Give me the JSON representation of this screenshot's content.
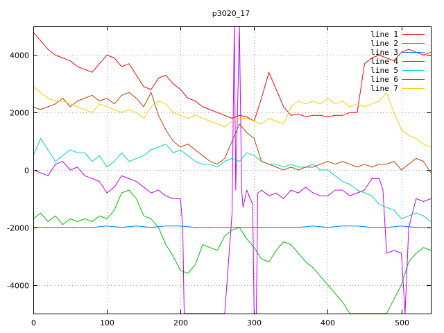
{
  "chart_data": {
    "type": "line",
    "title": "p3020_17",
    "xlabel": "",
    "ylabel": "",
    "xlim": [
      0,
      540
    ],
    "ylim": [
      -5000,
      5000
    ],
    "xticks": [
      0,
      100,
      200,
      300,
      400,
      500
    ],
    "yticks": [
      -4000,
      -2000,
      0,
      2000,
      4000
    ],
    "grid": true,
    "legend_position": "top-right",
    "series": [
      {
        "name": "line 1",
        "color": "#ff0000",
        "x": [
          0,
          10,
          20,
          30,
          40,
          50,
          60,
          70,
          80,
          90,
          100,
          110,
          120,
          130,
          140,
          150,
          160,
          170,
          180,
          190,
          200,
          210,
          220,
          230,
          240,
          250,
          260,
          270,
          280,
          290,
          300,
          310,
          320,
          330,
          340,
          350,
          360,
          370,
          380,
          390,
          400,
          410,
          420,
          430,
          440,
          450,
          460,
          470,
          480,
          490,
          500,
          510,
          520,
          530,
          540
        ],
        "values": [
          4800,
          4500,
          4200,
          4000,
          3900,
          3800,
          3600,
          3500,
          3400,
          3700,
          4000,
          3900,
          3600,
          3700,
          3300,
          2900,
          2800,
          3200,
          3300,
          3000,
          2800,
          2500,
          2400,
          2200,
          2100,
          2000,
          1900,
          1800,
          1900,
          1850,
          1700,
          2500,
          3400,
          2800,
          2200,
          1900,
          1950,
          1850,
          1900,
          1900,
          1850,
          1900,
          1900,
          2000,
          2000,
          3700,
          3900,
          4000,
          3900,
          3800,
          4100,
          4200,
          4100,
          4000,
          4100
        ]
      },
      {
        "name": "line 2",
        "color": "#00c000",
        "x": [
          0,
          10,
          20,
          30,
          40,
          50,
          60,
          70,
          80,
          90,
          100,
          110,
          120,
          130,
          140,
          150,
          160,
          170,
          180,
          190,
          200,
          210,
          220,
          230,
          240,
          250,
          260,
          270,
          280,
          290,
          300,
          310,
          320,
          330,
          340,
          350,
          360,
          370,
          380,
          390,
          400,
          410,
          420,
          430,
          440,
          450,
          460,
          470,
          480,
          490,
          500,
          510,
          520,
          530,
          540
        ],
        "values": [
          -1700,
          -1500,
          -1800,
          -1600,
          -1900,
          -1700,
          -1800,
          -1700,
          -1800,
          -1600,
          -1700,
          -1400,
          -800,
          -700,
          -1000,
          -1600,
          -1700,
          -2000,
          -2600,
          -3000,
          -3500,
          -3600,
          -3300,
          -2600,
          -2700,
          -2800,
          -2300,
          -2100,
          -2000,
          -2400,
          -2700,
          -3100,
          -3200,
          -2800,
          -2500,
          -2600,
          -2900,
          -3200,
          -3400,
          -3700,
          -4000,
          -4300,
          -4600,
          -5000,
          -5000,
          -5000,
          -5000,
          -5000,
          -5000,
          -4500,
          -4000,
          -3200,
          -2900,
          -2700,
          -2800
        ]
      },
      {
        "name": "line 3",
        "color": "#0080ff",
        "x": [
          0,
          20,
          40,
          60,
          80,
          100,
          120,
          140,
          160,
          180,
          200,
          220,
          240,
          260,
          280,
          300,
          320,
          340,
          360,
          380,
          400,
          420,
          440,
          460,
          480,
          500,
          520,
          540
        ],
        "values": [
          -2000,
          -2000,
          -2000,
          -2000,
          -2000,
          -1950,
          -2000,
          -1950,
          -2000,
          -1950,
          -1950,
          -2000,
          -2000,
          -2000,
          -2000,
          -2000,
          -2000,
          -2000,
          -2000,
          -1950,
          -2000,
          -1950,
          -1950,
          -2000,
          -2000,
          -1950,
          -2000,
          -2000
        ]
      },
      {
        "name": "line 4",
        "color": "#c000ff",
        "x": [
          0,
          10,
          20,
          30,
          40,
          50,
          60,
          70,
          80,
          90,
          100,
          110,
          120,
          130,
          140,
          150,
          160,
          170,
          180,
          190,
          200,
          203,
          205,
          210,
          220,
          230,
          240,
          250,
          260,
          270,
          273,
          275,
          280,
          283,
          285,
          290,
          298,
          300,
          303,
          305,
          310,
          320,
          330,
          340,
          350,
          360,
          370,
          380,
          390,
          400,
          410,
          420,
          430,
          440,
          450,
          460,
          470,
          475,
          480,
          490,
          500,
          505,
          510,
          520,
          530,
          540
        ],
        "values": [
          0,
          -100,
          -200,
          200,
          300,
          0,
          100,
          -200,
          -300,
          -400,
          -800,
          -600,
          -200,
          -300,
          -400,
          -600,
          -800,
          -700,
          -900,
          -1000,
          -1000,
          -2000,
          -5000,
          -5000,
          -5000,
          -5000,
          -5000,
          -5000,
          -5000,
          -1500,
          5000,
          -700,
          5000,
          -700,
          -1300,
          -700,
          -1200,
          -5000,
          -5000,
          -800,
          -700,
          -900,
          -800,
          -1000,
          -700,
          -800,
          -600,
          -800,
          -900,
          -900,
          -700,
          -700,
          -900,
          -800,
          -700,
          -300,
          -300,
          -700,
          -2900,
          -2800,
          -2900,
          -5000,
          -2000,
          -1000,
          -1100,
          -1000
        ]
      },
      {
        "name": "line 5",
        "color": "#00d0d0",
        "x": [
          0,
          10,
          20,
          30,
          40,
          50,
          60,
          70,
          80,
          90,
          100,
          110,
          120,
          130,
          140,
          150,
          160,
          170,
          180,
          190,
          200,
          210,
          220,
          230,
          240,
          250,
          260,
          270,
          280,
          290,
          300,
          310,
          320,
          330,
          340,
          350,
          360,
          370,
          380,
          390,
          400,
          410,
          420,
          430,
          440,
          450,
          460,
          470,
          480,
          490,
          500,
          510,
          520,
          530,
          540
        ],
        "values": [
          500,
          1100,
          700,
          300,
          500,
          700,
          600,
          600,
          300,
          500,
          100,
          300,
          600,
          300,
          400,
          500,
          700,
          800,
          900,
          600,
          700,
          500,
          300,
          200,
          200,
          100,
          300,
          400,
          300,
          600,
          500,
          300,
          200,
          200,
          100,
          200,
          100,
          100,
          200,
          0,
          0,
          -200,
          -400,
          -500,
          -700,
          -800,
          -900,
          -1200,
          -1300,
          -1400,
          -1700,
          -1600,
          -1500,
          -1600,
          -1800
        ]
      },
      {
        "name": "line 6",
        "color": "#c04000",
        "x": [
          0,
          10,
          20,
          30,
          40,
          50,
          60,
          70,
          80,
          90,
          100,
          110,
          120,
          130,
          140,
          150,
          160,
          170,
          180,
          190,
          200,
          210,
          220,
          230,
          240,
          250,
          260,
          270,
          280,
          290,
          300,
          310,
          320,
          330,
          340,
          350,
          360,
          370,
          380,
          390,
          400,
          410,
          420,
          430,
          440,
          450,
          460,
          470,
          480,
          490,
          500,
          510,
          520,
          530,
          540
        ],
        "values": [
          2200,
          2100,
          2200,
          2300,
          2500,
          2200,
          2400,
          2500,
          2600,
          2400,
          2500,
          2300,
          2600,
          2700,
          2500,
          2200,
          2700,
          1900,
          1400,
          1000,
          800,
          900,
          700,
          500,
          300,
          200,
          400,
          1000,
          1600,
          1300,
          1100,
          300,
          200,
          100,
          0,
          100,
          0,
          100,
          100,
          200,
          300,
          200,
          300,
          200,
          100,
          200,
          100,
          200,
          200,
          300,
          0,
          200,
          400,
          300,
          -100
        ]
      },
      {
        "name": "line 7",
        "color": "#ffcc00",
        "x": [
          0,
          10,
          20,
          30,
          40,
          50,
          60,
          70,
          80,
          90,
          100,
          110,
          120,
          130,
          140,
          150,
          160,
          170,
          180,
          190,
          200,
          210,
          220,
          230,
          240,
          250,
          260,
          270,
          280,
          290,
          300,
          310,
          320,
          330,
          340,
          350,
          360,
          370,
          380,
          390,
          400,
          410,
          420,
          430,
          440,
          450,
          460,
          470,
          480,
          490,
          500,
          510,
          520,
          530,
          540
        ],
        "values": [
          2900,
          2700,
          2500,
          2400,
          2400,
          2300,
          2200,
          2100,
          2000,
          2300,
          2200,
          2100,
          2000,
          2100,
          2000,
          1800,
          2200,
          2400,
          2300,
          2000,
          1900,
          1800,
          1900,
          1800,
          1700,
          1600,
          1500,
          1700,
          1800,
          1800,
          1700,
          1600,
          1800,
          1700,
          1600,
          2200,
          2400,
          2300,
          2400,
          2300,
          2500,
          2300,
          2400,
          2200,
          2300,
          2200,
          2300,
          2400,
          2700,
          2000,
          1400,
          1200,
          1100,
          900,
          800
        ]
      }
    ]
  }
}
